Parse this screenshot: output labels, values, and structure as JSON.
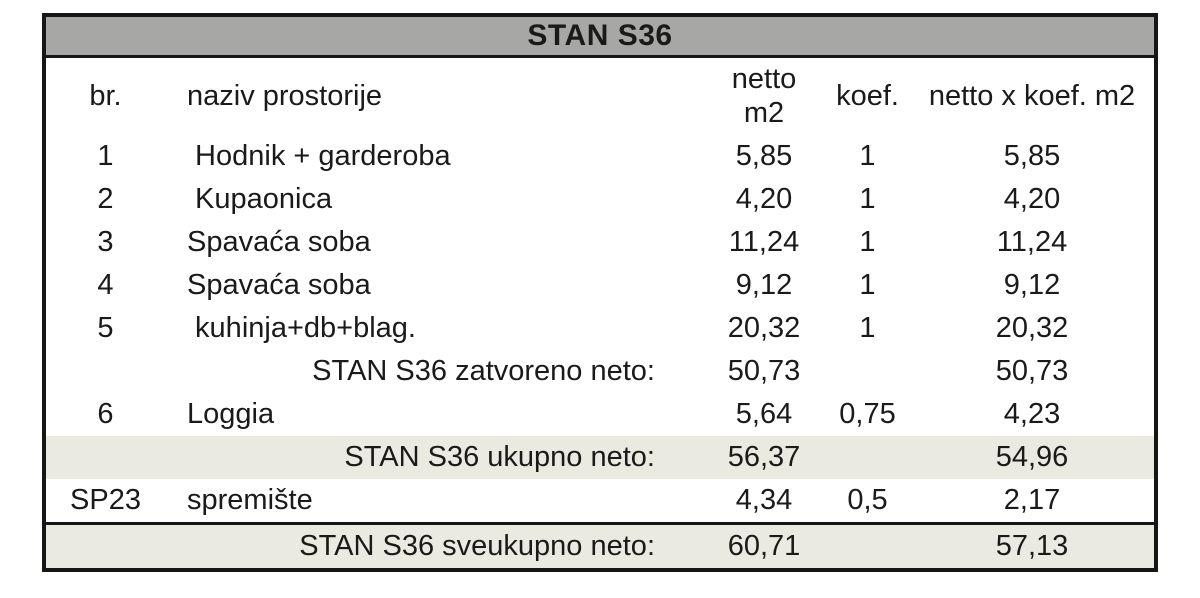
{
  "table": {
    "title": "STAN S36",
    "columns": {
      "br": "br.",
      "naziv": "naziv prostorije",
      "netto": "netto\nm2",
      "koef": "koef.",
      "result": "netto x koef. m2"
    },
    "rows": [
      {
        "br": "1",
        "name": " Hodnik + garderoba",
        "netto": "5,85",
        "koef": "1",
        "result": "5,85"
      },
      {
        "br": "2",
        "name": " Kupaonica",
        "netto": "4,20",
        "koef": "1",
        "result": "4,20"
      },
      {
        "br": "3",
        "name": "Spavaća soba",
        "netto": "11,24",
        "koef": "1",
        "result": "11,24"
      },
      {
        "br": "4",
        "name": "Spavaća soba",
        "netto": "9,12",
        "koef": "1",
        "result": "9,12"
      },
      {
        "br": "5",
        "name": " kuhinja+db+blag.",
        "netto": "20,32",
        "koef": "1",
        "result": "20,32"
      },
      {
        "label": "STAN S36 zatvoreno neto:",
        "netto": "50,73",
        "koef": "",
        "result": "50,73"
      },
      {
        "br": "6",
        "name": "Loggia",
        "netto": "5,64",
        "koef": "0,75",
        "result": "4,23"
      },
      {
        "label": "STAN S36 ukupno neto:",
        "netto": "56,37",
        "koef": "",
        "result": "54,96"
      },
      {
        "br": "SP23",
        "name": "spremište",
        "netto": "4,34",
        "koef": "0,5",
        "result": "2,17"
      },
      {
        "label": "STAN S36 sveukupno neto:",
        "netto": "60,71",
        "koef": "",
        "result": "57,13"
      }
    ]
  },
  "colors": {
    "title_bar_bg": "#a7a7a5",
    "highlight_row_bg": "#ebeae0",
    "border": "#161616",
    "text": "#1a1a1a"
  }
}
